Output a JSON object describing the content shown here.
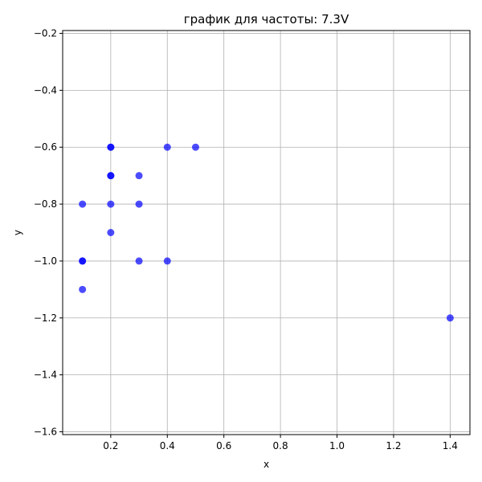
{
  "chart_data": {
    "type": "scatter",
    "title": "график для частоты: 7.3V",
    "xlabel": "x",
    "ylabel": "y",
    "xlim": [
      0.03,
      1.47
    ],
    "ylim": [
      -1.61,
      -0.19
    ],
    "xticks": [
      0.2,
      0.4,
      0.6,
      0.8,
      1.0,
      1.2,
      1.4
    ],
    "xtick_labels": [
      "0.2",
      "0.4",
      "0.6",
      "0.8",
      "1.0",
      "1.2",
      "1.4"
    ],
    "yticks": [
      -0.2,
      -0.4,
      -0.6,
      -0.8,
      -1.0,
      -1.2,
      -1.4,
      -1.6
    ],
    "ytick_labels": [
      "−0.2",
      "−0.4",
      "−0.6",
      "−0.8",
      "−1.0",
      "−1.2",
      "−1.4",
      "−1.6"
    ],
    "grid": true,
    "series": [
      {
        "color": "#0000ff",
        "points": [
          {
            "x": 0.1,
            "y": -0.8
          },
          {
            "x": 0.1,
            "y": -1.0
          },
          {
            "x": 0.1,
            "y": -1.0
          },
          {
            "x": 0.1,
            "y": -1.1
          },
          {
            "x": 0.2,
            "y": -0.6
          },
          {
            "x": 0.2,
            "y": -0.6
          },
          {
            "x": 0.2,
            "y": -0.7
          },
          {
            "x": 0.2,
            "y": -0.7
          },
          {
            "x": 0.2,
            "y": -0.8
          },
          {
            "x": 0.2,
            "y": -0.9
          },
          {
            "x": 0.3,
            "y": -0.7
          },
          {
            "x": 0.3,
            "y": -0.8
          },
          {
            "x": 0.3,
            "y": -1.0
          },
          {
            "x": 0.4,
            "y": -0.6
          },
          {
            "x": 0.4,
            "y": -1.0
          },
          {
            "x": 0.5,
            "y": -0.6
          },
          {
            "x": 1.4,
            "y": -1.2
          }
        ]
      }
    ]
  }
}
